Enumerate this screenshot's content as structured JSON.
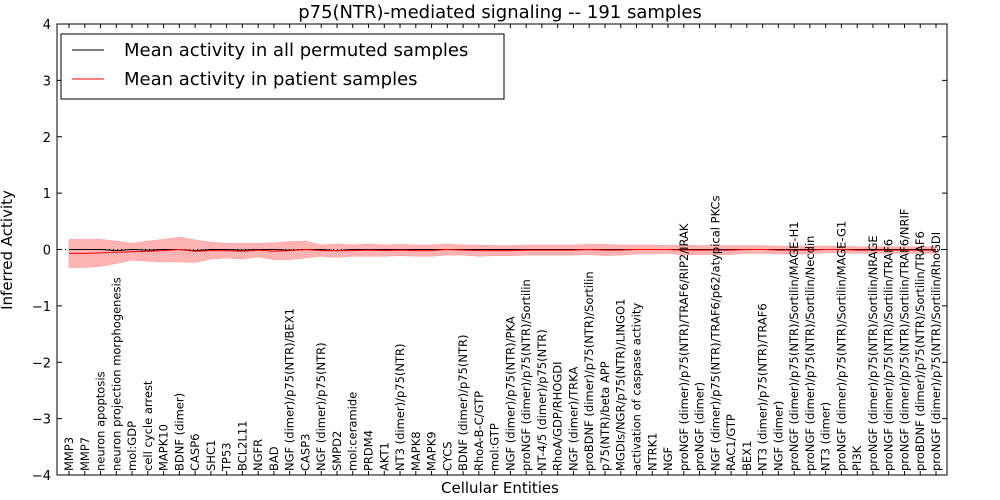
{
  "chart_data": {
    "type": "line",
    "title": "p75(NTR)-mediated signaling -- 191 samples",
    "xlabel": "Cellular Entities",
    "ylabel": "Inferred Activity",
    "ylim": [
      -4,
      4
    ],
    "yticks": [
      "−4",
      "−3",
      "−2",
      "−1",
      "0",
      "1",
      "2",
      "3",
      "4"
    ],
    "legend_position": "upper-left",
    "series": [
      {
        "name": "Mean activity in all permuted samples",
        "color": "#000000"
      },
      {
        "name": "Mean activity in patient samples",
        "color": "#ff0000",
        "band_color": "#ff9999"
      }
    ],
    "entities": [
      "MMP3",
      "MMP7",
      "neuron apoptosis",
      "neuron projection morphogenesis",
      "mol:GDP",
      "cell cycle arrest",
      "MAPK10",
      "BDNF (dimer)",
      "CASP6",
      "SHC1",
      "TP53",
      "BCL2L11",
      "NGFR",
      "BAD",
      "NGF (dimer)/p75(NTR)/BEX1",
      "CASP3",
      "NGF (dimer)/p75(NTR)",
      "SMPD2",
      "mol:ceramide",
      "PRDM4",
      "AKT1",
      "NT3 (dimer)/p75(NTR)",
      "MAPK8",
      "MAPK9",
      "CYCS",
      "BDNF (dimer)/p75(NTR)",
      "RhoA-B-C/GTP",
      "mol:GTP",
      "NGF (dimer)/p75(NTR)/PKA",
      "proNGF (dimer)/p75(NTR)/Sortilin",
      "NT-4/5 (dimer)/p75(NTR)",
      "RhoA/GDP/RHOGDI",
      "NGF (dimer)/TRKA",
      "proBDNF (dimer)/p75(NTR)/Sortilin",
      "p75(NTR)/beta APP",
      "MGDIs/NGR/p75(NTR)/LINGO1",
      "activation of caspase activity",
      "NTRK1",
      "NGF",
      "proNGF (dimer)/p75(NTR)/TRAF6/RIP2/IRAK",
      "proNGF (dimer)",
      "NGF (dimer)/p75(NTR)/TRAF6/p62/atypical PKCs",
      "RAC1/GTP",
      "BEX1",
      "NT3 (dimer)/p75(NTR)/TRAF6",
      "NGF (dimer)",
      "proNGF (dimer)/p75(NTR)/Sortilin/MAGE-H1",
      "proNGF (dimer)/p75(NTR)/Sortilin/Necdin",
      "NT3 (dimer)",
      "proNGF (dimer)/p75(NTR)/Sortilin/MAGE-G1",
      "PI3K",
      "proNGF (dimer)/p75(NTR)/Sortilin/NRAGE",
      "proNGF (dimer)/p75(NTR)/Sortilin/TRAF6",
      "proNGF (dimer)/p75(NTR)/Sortilin/TRAF6/NRIF",
      "proBDNF (dimer)/p75(NTR)/Sortilin/TRAF6",
      "proNGF (dimer)/p75(NTR)/Sortilin/RhoGDI"
    ],
    "permuted_mean": [
      0.0,
      0.0,
      0.0,
      -0.02,
      0.0,
      -0.01,
      0.0,
      0.0,
      -0.02,
      0.0,
      0.0,
      -0.01,
      0.0,
      0.0,
      -0.01,
      0.0,
      0.0,
      -0.02,
      0.0,
      0.0,
      0.0,
      0.0,
      0.0,
      0.0,
      0.0,
      0.0,
      0.0,
      0.0,
      0.0,
      0.0,
      0.0,
      0.0,
      0.0,
      0.0,
      0.0,
      0.0,
      0.0,
      0.0,
      0.0,
      0.0,
      0.0,
      0.0,
      0.0,
      0.0,
      0.0,
      0.0,
      0.0,
      0.0,
      0.0,
      0.0,
      0.0,
      0.0,
      0.0,
      0.0,
      0.0,
      0.0
    ],
    "patient_mean": [
      -0.07,
      -0.07,
      -0.06,
      -0.05,
      -0.04,
      -0.03,
      -0.02,
      0.0,
      -0.03,
      -0.02,
      -0.02,
      -0.03,
      -0.01,
      -0.03,
      -0.02,
      0.0,
      -0.02,
      -0.02,
      -0.02,
      -0.01,
      -0.02,
      -0.01,
      -0.02,
      -0.02,
      0.0,
      -0.01,
      -0.02,
      -0.02,
      -0.02,
      -0.01,
      -0.01,
      -0.01,
      -0.01,
      0.0,
      -0.01,
      -0.01,
      0.0,
      0.0,
      0.0,
      -0.01,
      -0.01,
      -0.01,
      -0.01,
      0.0,
      0.0,
      -0.01,
      -0.01,
      -0.01,
      0.0,
      0.0,
      -0.01,
      -0.01,
      -0.01,
      -0.01,
      -0.01,
      -0.01
    ],
    "band_half_width": [
      0.25,
      0.25,
      0.24,
      0.2,
      0.15,
      0.18,
      0.2,
      0.22,
      0.2,
      0.15,
      0.13,
      0.14,
      0.12,
      0.15,
      0.16,
      0.15,
      0.1,
      0.12,
      0.1,
      0.11,
      0.1,
      0.1,
      0.1,
      0.1,
      0.1,
      0.09,
      0.1,
      0.09,
      0.09,
      0.09,
      0.09,
      0.09,
      0.09,
      0.09,
      0.1,
      0.09,
      0.08,
      0.08,
      0.07,
      0.09,
      0.08,
      0.08,
      0.08,
      0.07,
      0.07,
      0.07,
      0.07,
      0.07,
      0.06,
      0.06,
      0.06,
      0.06,
      0.06,
      0.06,
      0.06,
      0.06
    ]
  }
}
